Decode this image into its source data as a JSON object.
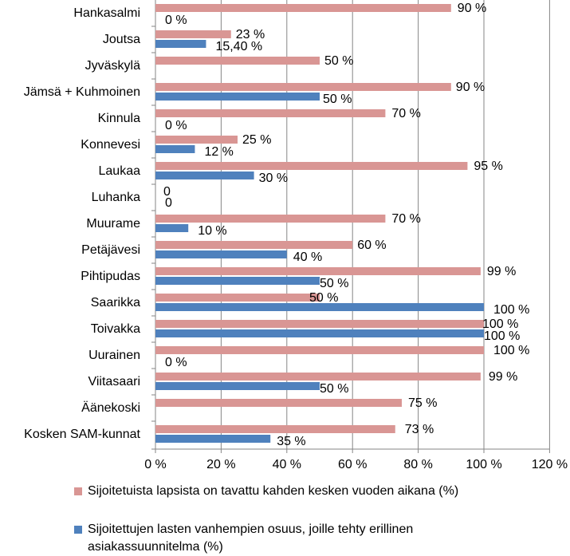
{
  "chart_data": {
    "type": "bar",
    "orientation": "horizontal",
    "categories": [
      "Hankasalmi",
      "Joutsa",
      "Jyväskylä",
      "Jämsä + Kuhmoinen",
      "Kinnula",
      "Konnevesi",
      "Laukaa",
      "Luhanka",
      "Muurame",
      "Petäjävesi",
      "Pihtipudas",
      "Saarikka",
      "Toivakka",
      "Uurainen",
      "Viitasaari",
      "Äänekoski",
      "Kosken SAM-kunnat"
    ],
    "series": [
      {
        "name": "Sijoitetuista lapsista on tavattu kahden kesken vuoden aikana (%)",
        "color": "#d99694",
        "values": [
          90,
          23,
          50,
          90,
          70,
          25,
          95,
          0,
          70,
          60,
          99,
          50,
          100,
          100,
          99,
          75,
          73
        ],
        "labels": [
          "90 %",
          "23 %",
          "50 %",
          "90 %",
          "70 %",
          "25 %",
          "95 %",
          "0",
          "70 %",
          "60 %",
          "99 %",
          "50 %",
          "100 %",
          "100 %",
          "99 %",
          "75 %",
          "73 %"
        ]
      },
      {
        "name": "Sijoitettujen lasten vanhempien osuus, joille tehty erillinen asiakassuunnitelma (%)",
        "color": "#4f81bd",
        "values": [
          0,
          15.4,
          null,
          50,
          0,
          12,
          30,
          0,
          10,
          40,
          50,
          100,
          100,
          0,
          50,
          null,
          35
        ],
        "labels": [
          "0 %",
          "15,40 %",
          "",
          "50 %",
          "0 %",
          "12 %",
          "30 %",
          "0",
          "10 %",
          "40 %",
          "50 %",
          "100 %",
          "100 %",
          "0 %",
          "50 %",
          "",
          "35 %"
        ]
      }
    ],
    "xlim": [
      0,
      120
    ],
    "xticks": [
      "0 %",
      "20 %",
      "40 %",
      "60 %",
      "80 %",
      "100 %",
      "120 %"
    ],
    "grid": true,
    "legend_position": "bottom"
  }
}
